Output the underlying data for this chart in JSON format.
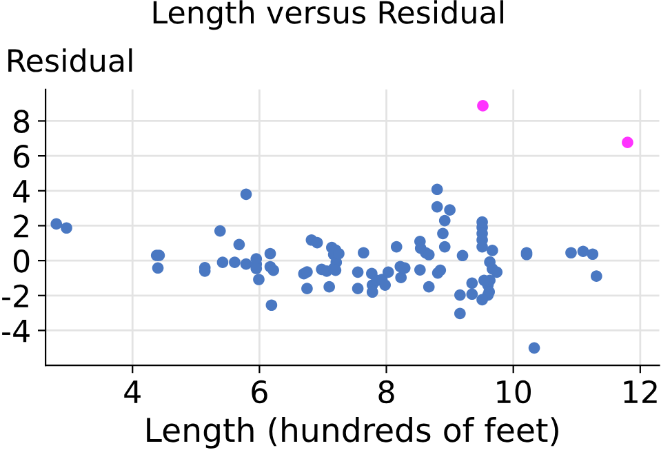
{
  "chart_data": {
    "type": "scatter",
    "title": "Length versus Residual",
    "xlabel": "Length (hundreds of feet)",
    "ylabel": "Residual",
    "xlim": [
      2.63,
      12.3
    ],
    "ylim": [
      -6.0,
      9.8
    ],
    "xticks": [
      4,
      6,
      8,
      10,
      12
    ],
    "yticks": [
      -4,
      -2,
      0,
      2,
      4,
      6,
      8
    ],
    "grid": true,
    "marker": "circle",
    "series": [
      {
        "color": "#4a78c2",
        "x": [
          2.8,
          2.96,
          4.38,
          4.42,
          4.4,
          5.14,
          5.14,
          5.38,
          5.79,
          5.42,
          5.61,
          5.68,
          5.79,
          5.95,
          5.95,
          5.95,
          5.99,
          6.17,
          6.17,
          6.22,
          6.19,
          6.7,
          6.75,
          6.75,
          6.82,
          6.91,
          6.98,
          7.06,
          7.1,
          7.14,
          7.2,
          7.17,
          7.21,
          7.17,
          7.2,
          7.25,
          7.64,
          7.55,
          7.55,
          7.77,
          7.78,
          7.78,
          7.85,
          7.93,
          7.98,
          8.03,
          8.16,
          8.22,
          8.23,
          8.29,
          8.53,
          8.54,
          8.62,
          8.67,
          8.53,
          8.67,
          8.8,
          8.8,
          9.0,
          8.92,
          8.89,
          8.92,
          8.81,
          8.85,
          9.16,
          9.16,
          9.35,
          9.35,
          9.2,
          9.51,
          9.51,
          9.51,
          9.51,
          9.51,
          9.67,
          9.63,
          9.67,
          9.74,
          9.63,
          9.6,
          9.62,
          9.6,
          9.51,
          9.54,
          10.21,
          10.21,
          10.33,
          10.91,
          11.1,
          11.25,
          11.31
        ],
        "values": [
          2.1,
          1.87,
          0.3,
          0.3,
          -0.42,
          -0.4,
          -0.6,
          1.7,
          3.8,
          -0.1,
          -0.1,
          0.92,
          -0.2,
          0.1,
          -0.2,
          -0.45,
          -1.08,
          0.4,
          -0.35,
          -0.55,
          -2.55,
          -0.75,
          -0.65,
          -1.6,
          1.18,
          1.03,
          -0.5,
          -0.6,
          -1.5,
          0.75,
          0.6,
          0.35,
          -0.1,
          -0.45,
          -0.55,
          0.4,
          0.45,
          -0.66,
          -1.6,
          -0.74,
          -1.4,
          -1.8,
          -1.13,
          -1.08,
          -1.4,
          -0.66,
          0.79,
          -0.34,
          -0.97,
          -0.42,
          1.1,
          0.71,
          0.45,
          0.34,
          -0.53,
          -1.5,
          4.08,
          3.08,
          2.9,
          2.29,
          1.55,
          0.79,
          -0.71,
          -0.55,
          -1.97,
          -3.03,
          -1.29,
          -1.92,
          0.29,
          2.21,
          1.9,
          1.55,
          1.18,
          0.79,
          0.58,
          -0.08,
          -0.47,
          -0.66,
          -1.13,
          -1.4,
          -1.79,
          -1.97,
          -2.24,
          -1.13,
          0.45,
          0.35,
          -5.0,
          0.45,
          0.53,
          0.37,
          -0.89
        ]
      },
      {
        "color": "#ff33ff",
        "x": [
          9.52,
          11.8
        ],
        "values": [
          8.87,
          6.77
        ]
      }
    ]
  }
}
